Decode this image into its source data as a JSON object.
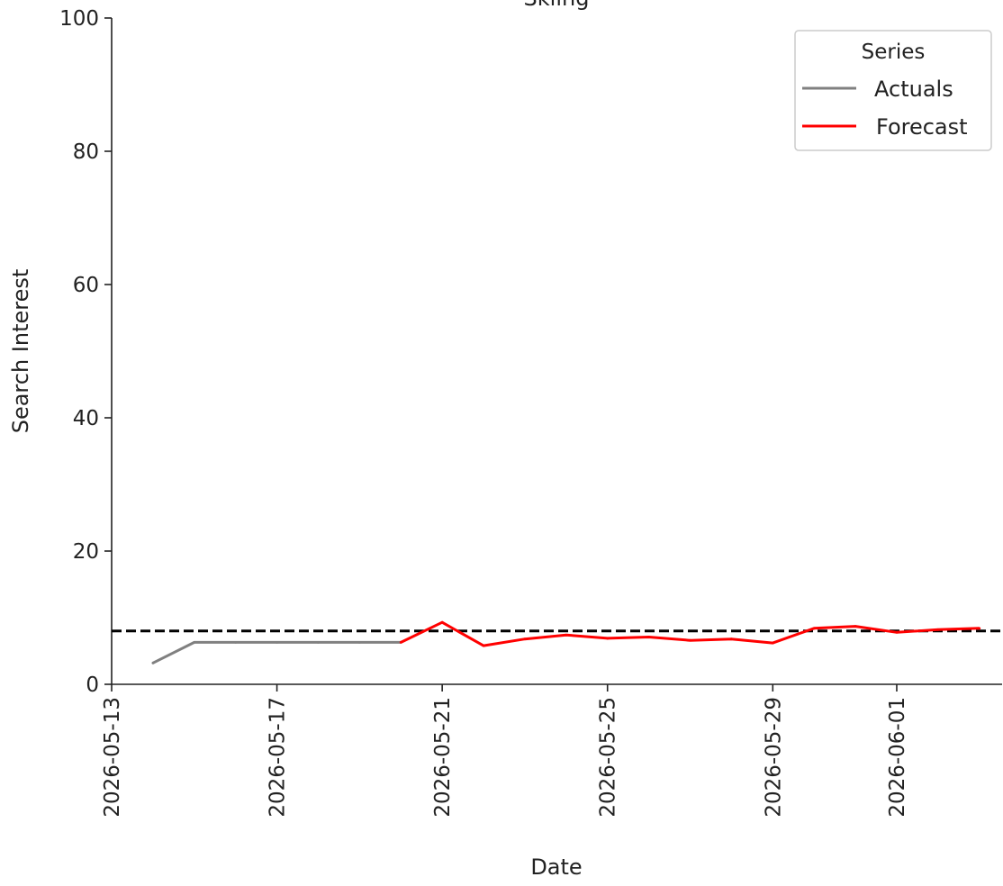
{
  "chart_data": {
    "type": "line",
    "title": "Skiing",
    "xlabel": "Date",
    "ylabel": "Search Interest",
    "ylim": [
      0,
      100
    ],
    "yticks": [
      0,
      20,
      40,
      60,
      80,
      100
    ],
    "xticks": [
      "2026-05-13",
      "2026-05-17",
      "2026-05-21",
      "2026-05-25",
      "2026-05-29",
      "2026-06-01"
    ],
    "xlim": [
      "2026-05-13",
      "2026-06-03"
    ],
    "reference_line": {
      "y": 8,
      "style": "dashed",
      "color": "#000000"
    },
    "legend": {
      "title": "Series",
      "position": "top-right"
    },
    "grid": false,
    "series": [
      {
        "name": "Actuals",
        "color": "#808080",
        "points": [
          {
            "x": "2026-05-14",
            "y": 3.2
          },
          {
            "x": "2026-05-15",
            "y": 6.3
          },
          {
            "x": "2026-05-16",
            "y": 6.3
          },
          {
            "x": "2026-05-17",
            "y": 6.3
          },
          {
            "x": "2026-05-18",
            "y": 6.3
          },
          {
            "x": "2026-05-19",
            "y": 6.3
          },
          {
            "x": "2026-05-20",
            "y": 6.3
          }
        ]
      },
      {
        "name": "Forecast",
        "color": "#ff0000",
        "points": [
          {
            "x": "2026-05-20",
            "y": 6.3
          },
          {
            "x": "2026-05-21",
            "y": 9.3
          },
          {
            "x": "2026-05-22",
            "y": 5.8
          },
          {
            "x": "2026-05-23",
            "y": 6.8
          },
          {
            "x": "2026-05-24",
            "y": 7.4
          },
          {
            "x": "2026-05-25",
            "y": 6.9
          },
          {
            "x": "2026-05-26",
            "y": 7.1
          },
          {
            "x": "2026-05-27",
            "y": 6.6
          },
          {
            "x": "2026-05-28",
            "y": 6.8
          },
          {
            "x": "2026-05-29",
            "y": 6.2
          },
          {
            "x": "2026-05-30",
            "y": 8.4
          },
          {
            "x": "2026-05-31",
            "y": 8.7
          },
          {
            "x": "2026-06-01",
            "y": 7.8
          },
          {
            "x": "2026-06-02",
            "y": 8.2
          },
          {
            "x": "2026-06-03",
            "y": 8.4
          }
        ]
      }
    ]
  }
}
